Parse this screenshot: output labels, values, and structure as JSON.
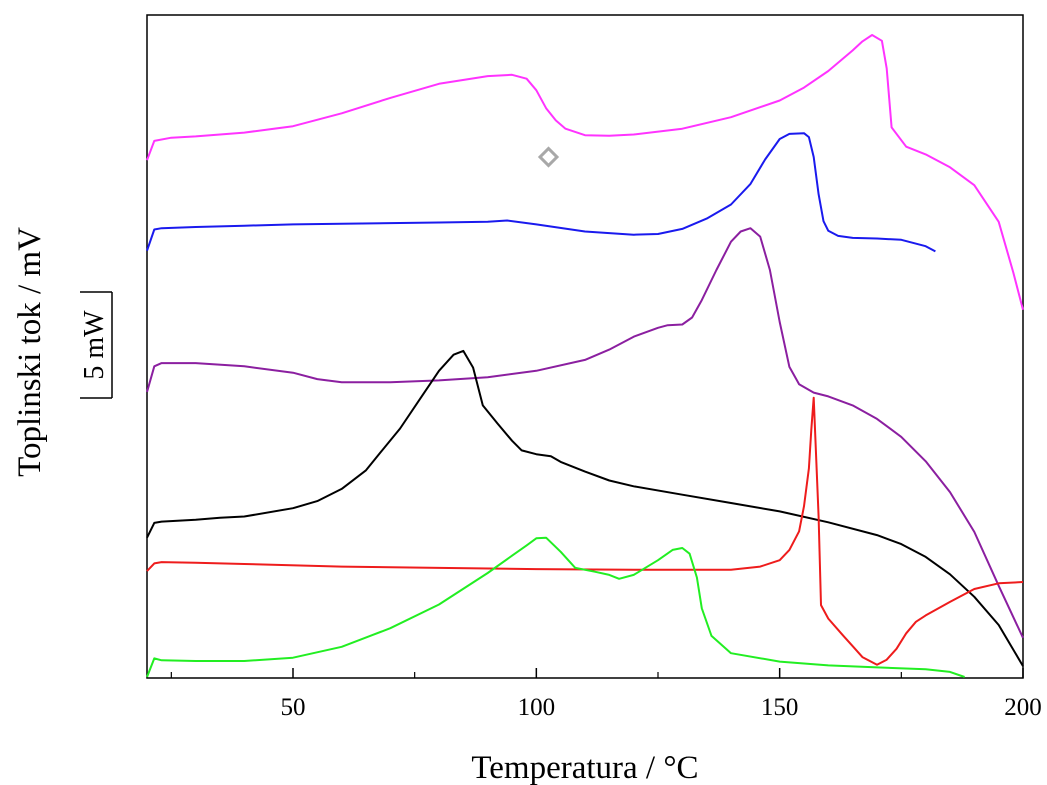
{
  "chart_data": {
    "type": "line",
    "title": "",
    "xlabel": "Temperatura / °C",
    "ylabel": "Toplinski tok / mV",
    "scale_bar_label": "5 mW",
    "xlim": [
      20,
      200
    ],
    "ylim": [
      0,
      100
    ],
    "y_tick_labels_shown": false,
    "x_ticks": [
      50,
      100,
      150,
      200
    ],
    "x_minor_ticks": [
      25,
      75,
      125,
      175
    ],
    "grid": false,
    "legend": "none",
    "series": [
      {
        "color": "#ff33ff",
        "points": [
          [
            20,
            80.5
          ],
          [
            21.5,
            83.5
          ],
          [
            25,
            84
          ],
          [
            30,
            84.2
          ],
          [
            40,
            84.8
          ],
          [
            50,
            85.8
          ],
          [
            60,
            87.8
          ],
          [
            70,
            90.2
          ],
          [
            80,
            92.4
          ],
          [
            90,
            93.6
          ],
          [
            95,
            93.8
          ],
          [
            98,
            93.2
          ],
          [
            100,
            91.4
          ],
          [
            102,
            88.6
          ],
          [
            104,
            86.7
          ],
          [
            106,
            85.4
          ],
          [
            110,
            84.4
          ],
          [
            115,
            84.3
          ],
          [
            120,
            84.5
          ],
          [
            130,
            85.4
          ],
          [
            140,
            87.2
          ],
          [
            150,
            89.8
          ],
          [
            155,
            91.8
          ],
          [
            160,
            94.4
          ],
          [
            165,
            97.6
          ],
          [
            167,
            99
          ],
          [
            169,
            100
          ],
          [
            171,
            99.1
          ],
          [
            172,
            94.8
          ],
          [
            173,
            85.6
          ],
          [
            176,
            82.6
          ],
          [
            180,
            81.4
          ],
          [
            185,
            79.4
          ],
          [
            190,
            76.6
          ],
          [
            195,
            70.9
          ],
          [
            198,
            63
          ],
          [
            200,
            57.2
          ]
        ]
      },
      {
        "color": "#1a1aee",
        "points": [
          [
            20,
            66.4
          ],
          [
            21.5,
            69.7
          ],
          [
            23,
            69.9
          ],
          [
            30,
            70.1
          ],
          [
            40,
            70.3
          ],
          [
            50,
            70.5
          ],
          [
            60,
            70.6
          ],
          [
            70,
            70.7
          ],
          [
            80,
            70.8
          ],
          [
            90,
            70.9
          ],
          [
            94,
            71.1
          ],
          [
            100,
            70.5
          ],
          [
            110,
            69.4
          ],
          [
            120,
            68.9
          ],
          [
            125,
            69
          ],
          [
            130,
            69.8
          ],
          [
            135,
            71.4
          ],
          [
            140,
            73.6
          ],
          [
            144,
            76.8
          ],
          [
            147,
            80.6
          ],
          [
            150,
            83.8
          ],
          [
            152,
            84.6
          ],
          [
            155,
            84.7
          ],
          [
            156,
            84.1
          ],
          [
            157,
            81
          ],
          [
            158,
            75.2
          ],
          [
            159,
            71
          ],
          [
            160,
            69.5
          ],
          [
            162,
            68.7
          ],
          [
            165,
            68.4
          ],
          [
            170,
            68.3
          ],
          [
            175,
            68.1
          ],
          [
            180,
            67.1
          ],
          [
            182,
            66.3
          ]
        ]
      },
      {
        "color": "#8b1fa0",
        "points": [
          [
            20,
            44.4
          ],
          [
            21.5,
            48.4
          ],
          [
            23,
            48.9
          ],
          [
            30,
            48.9
          ],
          [
            40,
            48.4
          ],
          [
            50,
            47.4
          ],
          [
            55,
            46.4
          ],
          [
            60,
            45.9
          ],
          [
            70,
            45.9
          ],
          [
            80,
            46.2
          ],
          [
            90,
            46.7
          ],
          [
            100,
            47.7
          ],
          [
            110,
            49.4
          ],
          [
            115,
            51
          ],
          [
            120,
            53
          ],
          [
            125,
            54.4
          ],
          [
            127,
            54.8
          ],
          [
            130,
            54.9
          ],
          [
            132,
            56
          ],
          [
            134,
            58.7
          ],
          [
            137,
            63.4
          ],
          [
            140,
            67.8
          ],
          [
            142,
            69.4
          ],
          [
            144,
            69.9
          ],
          [
            146,
            68.6
          ],
          [
            148,
            63.4
          ],
          [
            150,
            55.3
          ],
          [
            152,
            48.3
          ],
          [
            154,
            45.6
          ],
          [
            157,
            44.3
          ],
          [
            160,
            43.7
          ],
          [
            165,
            42.3
          ],
          [
            170,
            40.2
          ],
          [
            175,
            37.4
          ],
          [
            180,
            33.6
          ],
          [
            185,
            28.8
          ],
          [
            190,
            22.6
          ],
          [
            195,
            14.2
          ],
          [
            200,
            6.1
          ]
        ]
      },
      {
        "color": "#000000",
        "points": [
          [
            20,
            21.7
          ],
          [
            21.5,
            24
          ],
          [
            23,
            24.2
          ],
          [
            30,
            24.5
          ],
          [
            35,
            24.8
          ],
          [
            40,
            25
          ],
          [
            50,
            26.3
          ],
          [
            55,
            27.4
          ],
          [
            60,
            29.3
          ],
          [
            65,
            32.2
          ],
          [
            68,
            35
          ],
          [
            72,
            38.7
          ],
          [
            76,
            43.2
          ],
          [
            80,
            47.7
          ],
          [
            83,
            50.2
          ],
          [
            85,
            50.8
          ],
          [
            87,
            48.2
          ],
          [
            89,
            42.3
          ],
          [
            92,
            39.5
          ],
          [
            95,
            36.8
          ],
          [
            97,
            35.3
          ],
          [
            100,
            34.7
          ],
          [
            103,
            34.4
          ],
          [
            105,
            33.5
          ],
          [
            110,
            32
          ],
          [
            115,
            30.6
          ],
          [
            120,
            29.7
          ],
          [
            130,
            28.4
          ],
          [
            140,
            27.1
          ],
          [
            150,
            25.8
          ],
          [
            160,
            24.1
          ],
          [
            170,
            22.1
          ],
          [
            175,
            20.7
          ],
          [
            180,
            18.7
          ],
          [
            185,
            16
          ],
          [
            190,
            12.5
          ],
          [
            195,
            8.1
          ],
          [
            200,
            1.7
          ]
        ]
      },
      {
        "color": "#ee1c1c",
        "points": [
          [
            20,
            16.5
          ],
          [
            21.5,
            17.7
          ],
          [
            23,
            17.9
          ],
          [
            30,
            17.8
          ],
          [
            40,
            17.6
          ],
          [
            60,
            17.2
          ],
          [
            80,
            17
          ],
          [
            100,
            16.8
          ],
          [
            120,
            16.7
          ],
          [
            140,
            16.7
          ],
          [
            146,
            17.2
          ],
          [
            150,
            18.2
          ],
          [
            152,
            19.8
          ],
          [
            154,
            22.7
          ],
          [
            155,
            26.6
          ],
          [
            156,
            32.5
          ],
          [
            156.5,
            38.5
          ],
          [
            157,
            43.5
          ],
          [
            158,
            25
          ],
          [
            158.5,
            11.2
          ],
          [
            160,
            9.1
          ],
          [
            163,
            6.5
          ],
          [
            165,
            4.8
          ],
          [
            167,
            3.1
          ],
          [
            170,
            1.9
          ],
          [
            172,
            2.7
          ],
          [
            174,
            4.4
          ],
          [
            176,
            6.8
          ],
          [
            178,
            8.6
          ],
          [
            180,
            9.6
          ],
          [
            185,
            11.7
          ],
          [
            190,
            13.7
          ],
          [
            195,
            14.6
          ],
          [
            200,
            14.8
          ]
        ]
      },
      {
        "color": "#22ee22",
        "points": [
          [
            20,
            0
          ],
          [
            21.5,
            2.9
          ],
          [
            23,
            2.6
          ],
          [
            30,
            2.5
          ],
          [
            40,
            2.5
          ],
          [
            50,
            3
          ],
          [
            60,
            4.7
          ],
          [
            70,
            7.6
          ],
          [
            80,
            11.3
          ],
          [
            90,
            16.2
          ],
          [
            95,
            18.9
          ],
          [
            98,
            20.5
          ],
          [
            100,
            21.6
          ],
          [
            102,
            21.7
          ],
          [
            105,
            19.5
          ],
          [
            108,
            17
          ],
          [
            112,
            16.4
          ],
          [
            115,
            15.9
          ],
          [
            117,
            15.3
          ],
          [
            120,
            15.9
          ],
          [
            125,
            18.2
          ],
          [
            128,
            19.8
          ],
          [
            130,
            20.1
          ],
          [
            131.5,
            19.2
          ],
          [
            133,
            15.5
          ],
          [
            134,
            10.7
          ],
          [
            136,
            6.4
          ],
          [
            140,
            3.7
          ],
          [
            150,
            2.4
          ],
          [
            160,
            1.8
          ],
          [
            170,
            1.5
          ],
          [
            180,
            1.2
          ],
          [
            185,
            0.8
          ],
          [
            188,
            0
          ]
        ]
      }
    ]
  },
  "annotation": {
    "marker_icon": "diamond-marker-icon",
    "marker_color": "#a8a8a8",
    "x": 102.5,
    "y": 81
  }
}
